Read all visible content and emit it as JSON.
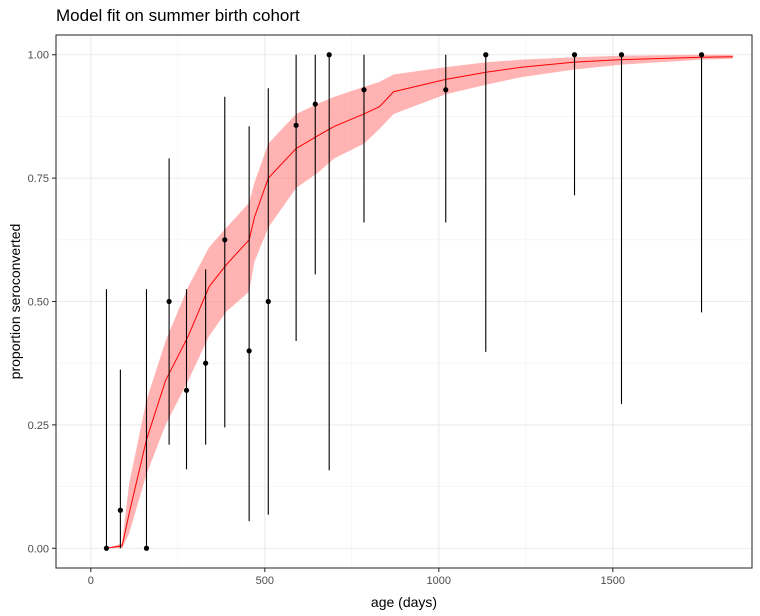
{
  "chart_data": {
    "type": "scatter",
    "title": "Model fit on summer birth cohort",
    "xlabel": "age (days)",
    "ylabel": "proportion seroconverted",
    "xlim": [
      -100,
      1900
    ],
    "ylim": [
      -0.04,
      1.04
    ],
    "xticks": [
      0,
      500,
      1000,
      1500
    ],
    "xtick_labels": [
      "0",
      "500",
      "1000",
      "1500"
    ],
    "yticks": [
      0,
      0.25,
      0.5,
      0.75,
      1
    ],
    "ytick_labels": [
      "0.00",
      "0.25",
      "0.50",
      "0.75",
      "1.00"
    ],
    "grid": true,
    "colors": {
      "fit_line": "#ff0000",
      "ribbon": "#ff8080",
      "points": "#000000"
    },
    "observed": [
      {
        "x": 45,
        "y": 0.0,
        "lo": 0.0,
        "hi": 0.525
      },
      {
        "x": 85,
        "y": 0.077,
        "lo": 0.0,
        "hi": 0.362
      },
      {
        "x": 160,
        "y": 0.0,
        "lo": 0.0,
        "hi": 0.525
      },
      {
        "x": 225,
        "y": 0.5,
        "lo": 0.21,
        "hi": 0.79
      },
      {
        "x": 275,
        "y": 0.32,
        "lo": 0.16,
        "hi": 0.525
      },
      {
        "x": 330,
        "y": 0.375,
        "lo": 0.21,
        "hi": 0.565
      },
      {
        "x": 385,
        "y": 0.625,
        "lo": 0.245,
        "hi": 0.915
      },
      {
        "x": 455,
        "y": 0.4,
        "lo": 0.055,
        "hi": 0.855
      },
      {
        "x": 510,
        "y": 0.5,
        "lo": 0.068,
        "hi": 0.932
      },
      {
        "x": 590,
        "y": 0.857,
        "lo": 0.42,
        "hi": 1.0
      },
      {
        "x": 645,
        "y": 0.9,
        "lo": 0.555,
        "hi": 1.0
      },
      {
        "x": 685,
        "y": 1.0,
        "lo": 0.158,
        "hi": 1.0
      },
      {
        "x": 785,
        "y": 0.929,
        "lo": 0.66,
        "hi": 1.0
      },
      {
        "x": 1020,
        "y": 0.929,
        "lo": 0.66,
        "hi": 1.0
      },
      {
        "x": 1135,
        "y": 1.0,
        "lo": 0.398,
        "hi": 1.0
      },
      {
        "x": 1390,
        "y": 1.0,
        "lo": 0.715,
        "hi": 1.0
      },
      {
        "x": 1525,
        "y": 1.0,
        "lo": 0.292,
        "hi": 1.0
      },
      {
        "x": 1755,
        "y": 1.0,
        "lo": 0.478,
        "hi": 1.0
      }
    ],
    "fit": [
      {
        "x": 45,
        "y": 0.0,
        "lo": 0.0,
        "hi": 0.0
      },
      {
        "x": 90,
        "y": 0.005,
        "lo": 0.0,
        "hi": 0.01
      },
      {
        "x": 110,
        "y": 0.07,
        "lo": 0.03,
        "hi": 0.13
      },
      {
        "x": 160,
        "y": 0.22,
        "lo": 0.15,
        "hi": 0.3
      },
      {
        "x": 215,
        "y": 0.34,
        "lo": 0.25,
        "hi": 0.42
      },
      {
        "x": 280,
        "y": 0.43,
        "lo": 0.34,
        "hi": 0.53
      },
      {
        "x": 340,
        "y": 0.53,
        "lo": 0.43,
        "hi": 0.61
      },
      {
        "x": 390,
        "y": 0.575,
        "lo": 0.48,
        "hi": 0.65
      },
      {
        "x": 455,
        "y": 0.625,
        "lo": 0.52,
        "hi": 0.7
      },
      {
        "x": 470,
        "y": 0.67,
        "lo": 0.58,
        "hi": 0.74
      },
      {
        "x": 510,
        "y": 0.75,
        "lo": 0.65,
        "hi": 0.82
      },
      {
        "x": 590,
        "y": 0.81,
        "lo": 0.73,
        "hi": 0.88
      },
      {
        "x": 650,
        "y": 0.835,
        "lo": 0.76,
        "hi": 0.9
      },
      {
        "x": 700,
        "y": 0.855,
        "lo": 0.79,
        "hi": 0.915
      },
      {
        "x": 785,
        "y": 0.88,
        "lo": 0.82,
        "hi": 0.935
      },
      {
        "x": 830,
        "y": 0.895,
        "lo": 0.85,
        "hi": 0.945
      },
      {
        "x": 870,
        "y": 0.925,
        "lo": 0.88,
        "hi": 0.96
      },
      {
        "x": 1020,
        "y": 0.95,
        "lo": 0.92,
        "hi": 0.975
      },
      {
        "x": 1140,
        "y": 0.965,
        "lo": 0.94,
        "hi": 0.985
      },
      {
        "x": 1240,
        "y": 0.975,
        "lo": 0.955,
        "hi": 0.99
      },
      {
        "x": 1390,
        "y": 0.985,
        "lo": 0.97,
        "hi": 0.995
      },
      {
        "x": 1525,
        "y": 0.99,
        "lo": 0.98,
        "hi": 0.998
      },
      {
        "x": 1755,
        "y": 0.995,
        "lo": 0.99,
        "hi": 1.0
      },
      {
        "x": 1845,
        "y": 0.996,
        "lo": 0.992,
        "hi": 1.0
      }
    ]
  }
}
